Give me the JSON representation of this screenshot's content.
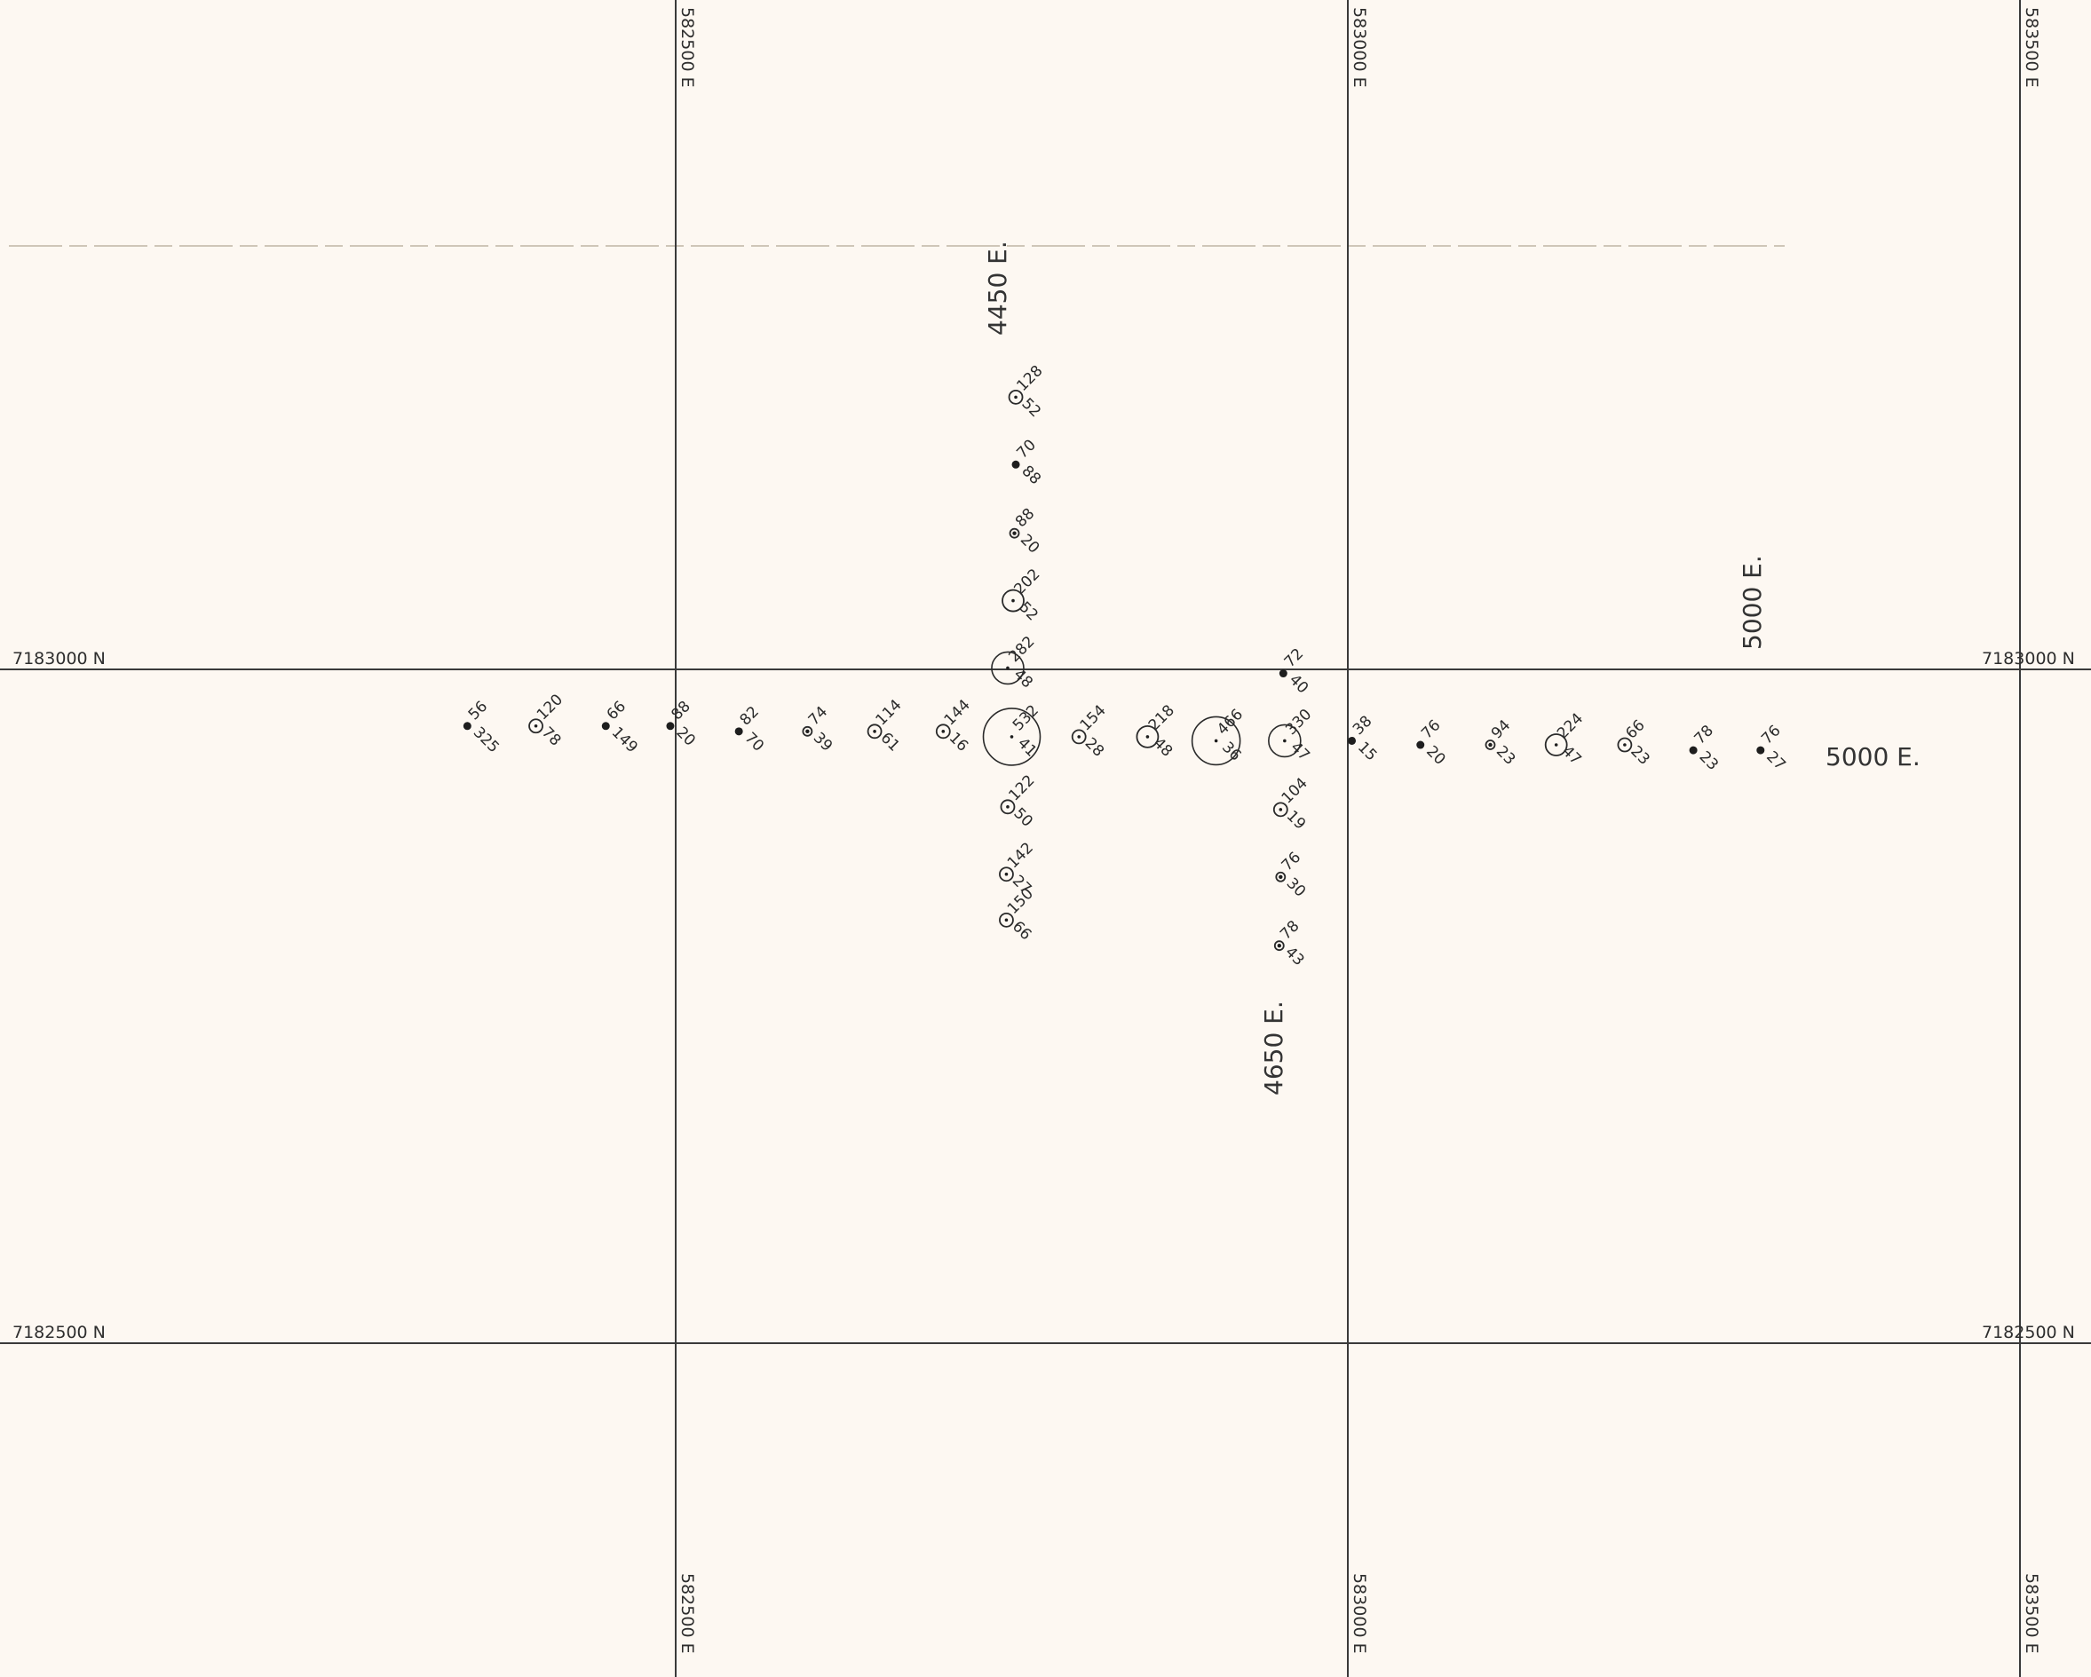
{
  "map": {
    "easting_labels": [
      "582500 E",
      "583000 E",
      "583500 E"
    ],
    "northing_labels": [
      "7183000 N",
      "7182500 N"
    ],
    "line_labels": [
      {
        "id": "4450",
        "text": "4450 E."
      },
      {
        "id": "4650",
        "text": "4650 E."
      },
      {
        "id": "5000v",
        "text": "5000 E."
      },
      {
        "id": "5000h",
        "text": "5000 E."
      }
    ],
    "samples": [
      {
        "line": "5000",
        "e": 582345,
        "n": 7182958,
        "size": 1,
        "upper": "56",
        "lower": "325"
      },
      {
        "line": "5000",
        "e": 582396,
        "n": 7182958,
        "size": 3,
        "upper": "120",
        "lower": "78"
      },
      {
        "line": "5000",
        "e": 582448,
        "n": 7182958,
        "size": 1,
        "upper": "66",
        "lower": "149"
      },
      {
        "line": "5000",
        "e": 582496,
        "n": 7182958,
        "size": 1,
        "upper": "88",
        "lower": "20"
      },
      {
        "line": "5000",
        "e": 582547,
        "n": 7182954,
        "size": 1,
        "upper": "82",
        "lower": "70"
      },
      {
        "line": "5000",
        "e": 582598,
        "n": 7182954,
        "size": 2,
        "upper": "74",
        "lower": "39"
      },
      {
        "line": "5000",
        "e": 582648,
        "n": 7182954,
        "size": 3,
        "upper": "114",
        "lower": "61"
      },
      {
        "line": "5000",
        "e": 582699,
        "n": 7182954,
        "size": 3,
        "upper": "144",
        "lower": "16"
      },
      {
        "line": "5000",
        "e": 582750,
        "n": 7182950,
        "size": 7,
        "upper": "532",
        "lower": "41"
      },
      {
        "line": "5000",
        "e": 582800,
        "n": 7182950,
        "size": 3,
        "upper": "154",
        "lower": "28"
      },
      {
        "line": "5000",
        "e": 582851,
        "n": 7182950,
        "size": 4,
        "upper": "218",
        "lower": "48"
      },
      {
        "line": "5000",
        "e": 582902,
        "n": 7182947,
        "size": 6,
        "upper": "466",
        "lower": "36"
      },
      {
        "line": "5000",
        "e": 582953,
        "n": 7182947,
        "size": 5,
        "upper": "330",
        "lower": "47"
      },
      {
        "line": "5000",
        "e": 583003,
        "n": 7182947,
        "size": 1,
        "upper": "38",
        "lower": "15"
      },
      {
        "line": "5000",
        "e": 583054,
        "n": 7182944,
        "size": 1,
        "upper": "76",
        "lower": "20"
      },
      {
        "line": "5000",
        "e": 583106,
        "n": 7182944,
        "size": 2,
        "upper": "94",
        "lower": "23"
      },
      {
        "line": "5000",
        "e": 583155,
        "n": 7182944,
        "size": 4,
        "upper": "224",
        "lower": "47"
      },
      {
        "line": "5000",
        "e": 583206,
        "n": 7182944,
        "size": 3,
        "upper": "66",
        "lower": "23"
      },
      {
        "line": "5000",
        "e": 583257,
        "n": 7182940,
        "size": 1,
        "upper": "78",
        "lower": "23"
      },
      {
        "line": "5000",
        "e": 583307,
        "n": 7182940,
        "size": 1,
        "upper": "76",
        "lower": "27"
      },
      {
        "line": "4450",
        "e": 582753,
        "n": 7183202,
        "size": 3,
        "upper": "128",
        "lower": "52"
      },
      {
        "line": "4450",
        "e": 582753,
        "n": 7183152,
        "size": 1,
        "upper": "70",
        "lower": "88"
      },
      {
        "line": "4450",
        "e": 582752,
        "n": 7183101,
        "size": 2,
        "upper": "88",
        "lower": "20"
      },
      {
        "line": "4450",
        "e": 582751,
        "n": 7183051,
        "size": 4,
        "upper": "202",
        "lower": "52"
      },
      {
        "line": "4450",
        "e": 582747,
        "n": 7183001,
        "size": 5,
        "upper": "282",
        "lower": "48"
      },
      {
        "line": "4450",
        "e": 582747,
        "n": 7182898,
        "size": 3,
        "upper": "122",
        "lower": "50"
      },
      {
        "line": "4450",
        "e": 582746,
        "n": 7182848,
        "size": 3,
        "upper": "142",
        "lower": "27"
      },
      {
        "line": "4450",
        "e": 582746,
        "n": 7182814,
        "size": 3,
        "upper": "150",
        "lower": "66"
      },
      {
        "line": "4650",
        "e": 582952,
        "n": 7182997,
        "size": 1,
        "upper": "72",
        "lower": "40"
      },
      {
        "line": "4650",
        "e": 582950,
        "n": 7182896,
        "size": 3,
        "upper": "104",
        "lower": "19"
      },
      {
        "line": "4650",
        "e": 582950,
        "n": 7182846,
        "size": 2,
        "upper": "76",
        "lower": "30"
      },
      {
        "line": "4650",
        "e": 582949,
        "n": 7182795,
        "size": 2,
        "upper": "78",
        "lower": "43"
      }
    ]
  }
}
